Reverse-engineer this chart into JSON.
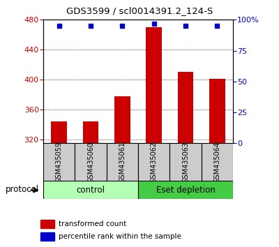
{
  "title": "GDS3599 / scl0014391.2_124-S",
  "samples": [
    "GSM435059",
    "GSM435060",
    "GSM435061",
    "GSM435062",
    "GSM435063",
    "GSM435064"
  ],
  "bar_values": [
    344,
    344,
    378,
    470,
    410,
    401
  ],
  "percentile_values": [
    95,
    95,
    95,
    97,
    95,
    95
  ],
  "ylim_left": [
    315,
    480
  ],
  "ylim_right": [
    0,
    100
  ],
  "yticks_left": [
    320,
    360,
    400,
    440,
    480
  ],
  "yticks_right": [
    0,
    25,
    50,
    75,
    100
  ],
  "bar_color": "#cc0000",
  "dot_color": "#0000cc",
  "bar_bottom": 315,
  "control_color": "#b3ffb3",
  "eset_color": "#44cc44",
  "sample_box_color": "#cccccc",
  "group_label_control": "control",
  "group_label_eset": "Eset depletion",
  "protocol_label": "protocol",
  "legend_bar_label": "transformed count",
  "legend_dot_label": "percentile rank within the sample",
  "tick_label_color_left": "#cc0000",
  "tick_label_color_right": "#0000cc"
}
